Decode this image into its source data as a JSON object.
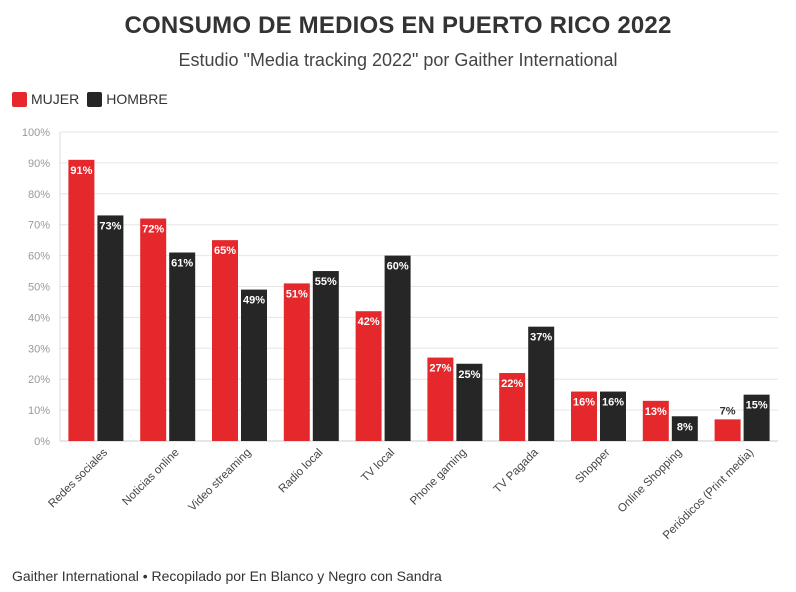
{
  "header": {
    "title": "CONSUMO DE MEDIOS EN PUERTO RICO 2022",
    "subtitle": "Estudio \"Media tracking 2022\" por Gaither International"
  },
  "footer": {
    "text": "Gaither International • Recopilado por En Blanco y Negro con Sandra"
  },
  "colors": {
    "mujer": "#e4282c",
    "hombre": "#262626",
    "grid": "#e6e6e6",
    "tick_text": "#999999"
  },
  "chart_data": {
    "type": "bar",
    "title": "CONSUMO DE MEDIOS EN PUERTO RICO 2022",
    "subtitle": "Estudio \"Media tracking 2022\" por Gaither International",
    "categories": [
      "Redes sociales",
      "Noticias online",
      "Video streaming",
      "Radio local",
      "TV local",
      "Phone gaming",
      "TV Pagada",
      "Shopper",
      "Online Shopping",
      "Periódicos (Print media)"
    ],
    "series": [
      {
        "name": "MUJER",
        "values": [
          91,
          72,
          65,
          51,
          42,
          27,
          22,
          16,
          13,
          7
        ]
      },
      {
        "name": "HOMBRE",
        "values": [
          73,
          61,
          49,
          55,
          60,
          25,
          37,
          16,
          8,
          15
        ]
      }
    ],
    "ylim": [
      0,
      100
    ],
    "yticks": [
      "0%",
      "10%",
      "20%",
      "30%",
      "40%",
      "50%",
      "60%",
      "70%",
      "80%",
      "90%",
      "100%"
    ],
    "xlabel": "",
    "ylabel": "",
    "grid": true,
    "legend_position": "top-left"
  }
}
